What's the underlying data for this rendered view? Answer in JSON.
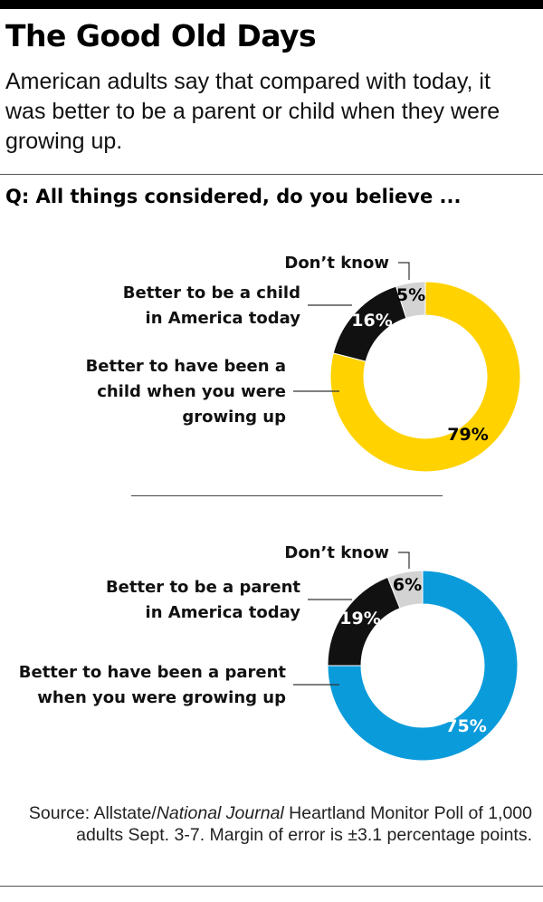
{
  "title": "The Good Old Days",
  "subtitle": "American adults say that compared with today, it was better to be a parent or child when they were growing up.",
  "question": "Q: All things considered, do you believe ...",
  "source": {
    "prefix": "Source: Allstate/",
    "italic": "National Journal",
    "suffix": " Heartland Monitor Poll of 1,000 adults Sept. 3-7. Margin of error is ±3.1 percentage points."
  },
  "colors": {
    "yellow": "#FFD200",
    "blue": "#0A9BDB",
    "black": "#111111",
    "gray": "#D3D3D3"
  },
  "chart_data": [
    {
      "type": "pie",
      "donut": true,
      "title": "",
      "categories": [
        "Better to have been a child when you were growing up",
        "Better to be a child in America today",
        "Don’t know"
      ],
      "values": [
        79,
        16,
        5
      ],
      "value_labels": [
        "79%",
        "16%",
        "5%"
      ],
      "label_lines": [
        [
          "Better to have been a",
          "child when you were",
          "growing up"
        ],
        [
          "Better to be a child",
          "in America today"
        ],
        [
          "Don’t know"
        ]
      ],
      "colors": [
        "#FFD200",
        "#111111",
        "#D3D3D3"
      ]
    },
    {
      "type": "pie",
      "donut": true,
      "title": "",
      "categories": [
        "Better to have been a parent when you were growing up",
        "Better to be a parent in America today",
        "Don’t know"
      ],
      "values": [
        75,
        19,
        6
      ],
      "value_labels": [
        "75%",
        "19%",
        "6%"
      ],
      "label_lines": [
        [
          "Better to have been a parent",
          "when you were growing up"
        ],
        [
          "Better to be a parent",
          "in America today"
        ],
        [
          "Don’t know"
        ]
      ],
      "colors": [
        "#0A9BDB",
        "#111111",
        "#D3D3D3"
      ]
    }
  ]
}
